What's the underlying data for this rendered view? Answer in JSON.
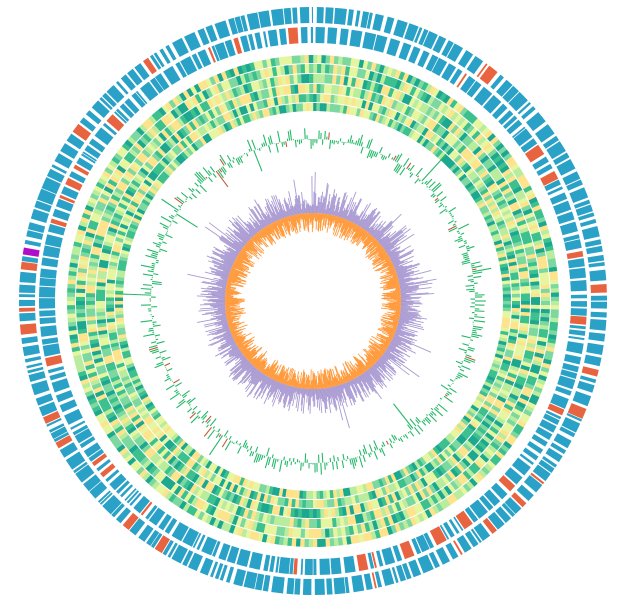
{
  "figure": {
    "type": "circular-genome-plot",
    "background": "#ffffff"
  },
  "tracks": [
    {
      "name": "gene-features-forward",
      "colors": {
        "primary": "#2aa1c7",
        "secondary": "#e8633f",
        "highlight": "#b10dc9"
      }
    },
    {
      "name": "gene-features-reverse",
      "colors": {
        "primary": "#2aa1c7",
        "secondary": "#e8633f"
      }
    },
    {
      "name": "heat-ring-1",
      "palette": [
        "#1ca78f",
        "#3cc08e",
        "#7dd8a0",
        "#b9ec9d",
        "#e6f6a0",
        "#fde48c"
      ]
    },
    {
      "name": "heat-ring-2",
      "palette": [
        "#1ca78f",
        "#3cc08e",
        "#7dd8a0",
        "#b9ec9d",
        "#e6f6a0",
        "#fde48c"
      ]
    },
    {
      "name": "heat-ring-3",
      "palette": [
        "#1ca78f",
        "#3cc08e",
        "#7dd8a0",
        "#b9ec9d",
        "#e6f6a0",
        "#fde48c"
      ]
    },
    {
      "name": "heat-ring-4",
      "palette": [
        "#1ca78f",
        "#3cc08e",
        "#7dd8a0",
        "#b9ec9d",
        "#e6f6a0",
        "#fde48c"
      ]
    },
    {
      "name": "gc-content-bars",
      "colors": {
        "positive": "#27b86a",
        "negative": "#c15c3c"
      }
    },
    {
      "name": "gc-skew-bars",
      "colors": {
        "positive": "#ff9a3c",
        "negative": "#a99ad2"
      }
    }
  ]
}
